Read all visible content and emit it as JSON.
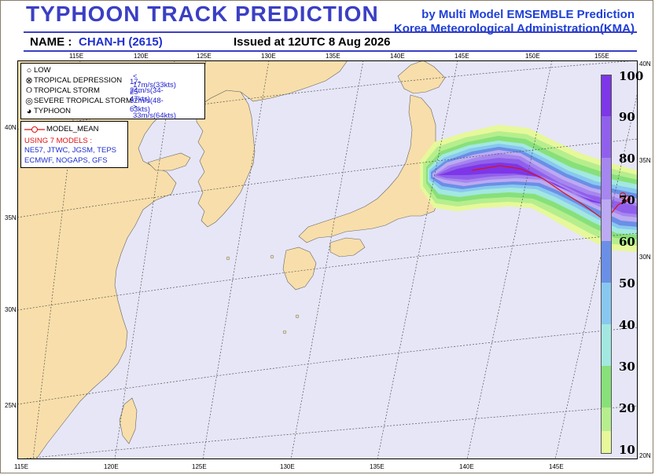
{
  "header": {
    "title": "TYPHOON  TRACK  PREDICTION",
    "by_line1": "by Multi Model EMSEMBLE Prediction",
    "by_line2": "Korea Meteorological Administration(KMA)",
    "name_label": "NAME :",
    "name_value": "CHAN-H (2615)",
    "issued": "Issued at  12UTC  8 Aug 2026"
  },
  "legend": {
    "items": [
      {
        "icon": "low-icon",
        "label": "LOW",
        "value": ""
      },
      {
        "icon": "tropical-depression-icon",
        "label": "TROPICAL DEPRESSION",
        "value": "< 17m/s(33kts)"
      },
      {
        "icon": "tropical-storm-icon",
        "label": "TROPICAL STORM",
        "value": "17-24m/s(34-47kts)"
      },
      {
        "icon": "severe-tropical-storm-icon",
        "label": "SEVERE TROPICAL STORM",
        "value": "25-32m/s(48-63kts)"
      },
      {
        "icon": "typhoon-icon",
        "label": "TYPHOON",
        "value": "> 33m/s(64kts)"
      }
    ],
    "model_mean": "MODEL_MEAN",
    "using": "USING 7 MODELS :",
    "models_line1": "NE57, JTWC, JGSM, TEPS",
    "models_line2": "ECMWF, NOGAPS, GFS"
  },
  "axes": {
    "top_lon": [
      "115E",
      "120E",
      "125E",
      "130E",
      "135E",
      "140E",
      "145E",
      "150E",
      "155E"
    ],
    "bottom_lon": [
      "115E",
      "120E",
      "125E",
      "130E",
      "135E",
      "140E",
      "145E"
    ],
    "left_lat": [
      "40N",
      "35N",
      "30N",
      "25N"
    ],
    "right_lat": [
      "40N",
      "35N",
      "30N",
      "20N"
    ]
  },
  "colorbar": {
    "labels": [
      "100",
      "90",
      "80",
      "70",
      "60",
      "50",
      "40",
      "30",
      "20",
      "10"
    ],
    "colors": [
      "#7d36e8",
      "#9060ec",
      "#a686ef",
      "#bcaaf2",
      "#6a8fe6",
      "#88c8f0",
      "#a2e8e0",
      "#88e07a",
      "#b6ee8e",
      "#e6f89a"
    ]
  }
}
